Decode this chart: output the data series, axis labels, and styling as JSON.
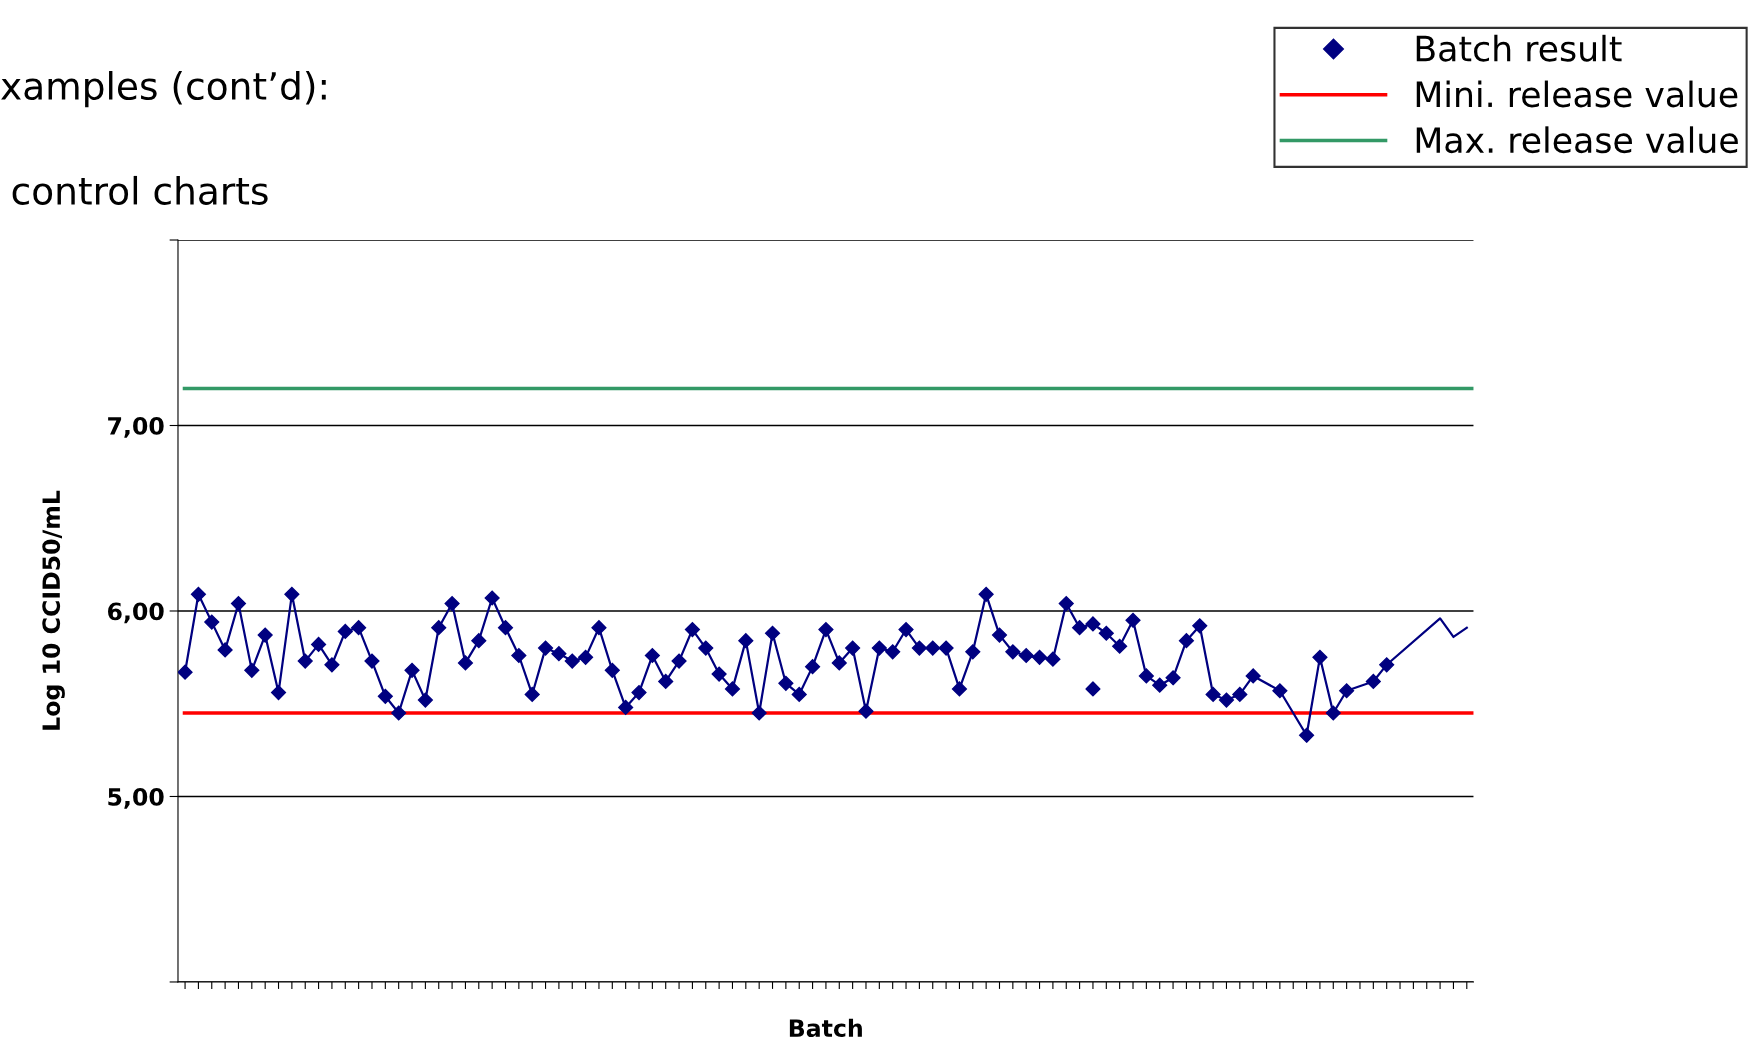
{
  "chart_data": {
    "type": "line",
    "xlabel": "Batch",
    "ylabel": "Log 10 CCID50/mL",
    "categories": [
      null,
      null,
      null,
      null,
      null,
      null,
      null,
      null,
      null,
      null,
      null,
      null,
      null,
      null,
      null,
      null,
      null,
      null,
      null,
      null,
      null,
      null,
      null,
      null,
      null,
      null,
      null,
      null,
      null,
      null,
      null,
      null,
      null,
      null,
      null,
      null,
      null,
      null,
      null,
      null,
      null,
      null,
      null,
      null,
      null,
      null,
      null,
      null,
      null,
      null,
      null,
      null,
      null,
      null,
      null,
      null,
      null,
      null,
      null,
      null,
      null,
      null,
      null,
      null,
      null,
      null,
      null,
      null,
      null,
      null,
      null,
      null,
      null,
      null,
      null,
      null,
      null,
      null,
      null,
      null,
      null,
      null,
      null,
      null,
      null,
      null,
      null,
      null,
      null,
      null,
      null,
      null,
      null,
      null,
      null,
      null,
      null
    ],
    "series": [
      {
        "name": "Batch result",
        "marker": "diamond",
        "color": "#000080",
        "values": [
          5.67,
          6.09,
          5.94,
          5.79,
          6.04,
          5.68,
          5.87,
          5.56,
          6.09,
          5.73,
          5.82,
          5.71,
          5.89,
          5.91,
          5.73,
          5.54,
          5.45,
          5.68,
          5.52,
          5.91,
          6.04,
          5.72,
          5.84,
          6.07,
          5.91,
          5.76,
          5.55,
          5.8,
          5.77,
          5.73,
          5.75,
          5.91,
          5.68,
          5.48,
          5.56,
          5.76,
          5.62,
          5.73,
          5.9,
          5.8,
          5.66,
          5.58,
          5.84,
          5.45,
          5.88,
          5.61,
          5.55,
          5.7,
          5.9,
          5.72,
          5.8,
          5.46,
          5.8,
          5.78,
          5.9,
          5.8,
          5.8,
          5.8,
          5.58,
          5.78,
          6.09,
          5.87,
          5.78,
          5.76,
          5.75,
          5.74,
          6.04,
          5.91,
          5.93,
          5.88,
          5.81,
          5.95,
          5.65,
          5.6,
          5.64,
          5.84,
          5.92,
          5.55,
          5.52,
          5.55,
          5.65,
          null,
          5.57,
          null,
          5.33,
          5.75,
          5.45,
          5.57,
          null,
          5.62,
          5.71,
          null,
          null,
          null,
          null,
          null,
          null
        ]
      },
      {
        "type": "scatter",
        "marker": "diamond",
        "color": "#000080",
        "values": [
          null,
          null,
          null,
          null,
          null,
          null,
          null,
          null,
          null,
          null,
          null,
          null,
          null,
          null,
          null,
          null,
          null,
          null,
          null,
          null,
          null,
          null,
          null,
          null,
          null,
          null,
          null,
          null,
          null,
          null,
          null,
          null,
          null,
          null,
          null,
          null,
          null,
          null,
          null,
          null,
          null,
          null,
          null,
          null,
          null,
          null,
          null,
          null,
          null,
          null,
          null,
          null,
          null,
          null,
          null,
          null,
          null,
          null,
          null,
          null,
          null,
          null,
          null,
          null,
          null,
          null,
          null,
          null,
          5.58,
          null,
          null,
          null,
          null,
          null,
          null,
          null,
          null,
          null,
          null,
          null,
          null,
          null,
          null,
          null,
          null,
          null,
          null,
          null,
          null,
          null,
          null,
          null,
          null,
          null,
          null,
          null,
          null
        ]
      },
      {
        "marker": "none",
        "color": "#000080",
        "values": [
          null,
          null,
          null,
          null,
          null,
          null,
          null,
          null,
          null,
          null,
          null,
          null,
          null,
          null,
          null,
          null,
          null,
          null,
          null,
          null,
          null,
          null,
          null,
          null,
          null,
          null,
          null,
          null,
          null,
          null,
          null,
          null,
          null,
          null,
          null,
          null,
          null,
          null,
          null,
          null,
          null,
          null,
          null,
          null,
          null,
          null,
          null,
          null,
          null,
          null,
          null,
          null,
          null,
          null,
          null,
          null,
          null,
          null,
          null,
          null,
          null,
          null,
          null,
          null,
          null,
          null,
          null,
          null,
          null,
          null,
          null,
          null,
          null,
          null,
          null,
          null,
          null,
          null,
          null,
          null,
          null,
          null,
          null,
          null,
          null,
          null,
          null,
          null,
          null,
          null,
          5.71,
          null,
          null,
          null,
          5.96,
          5.86,
          5.91
        ]
      }
    ],
    "ylim": [
      4,
      8
    ],
    "yticks": [
      {
        "value": 4,
        "label": null
      },
      {
        "value": 5,
        "label": "5,00"
      },
      {
        "value": 6,
        "label": "6,00"
      },
      {
        "value": 7,
        "label": "7,00"
      },
      {
        "value": 8,
        "label": null
      }
    ],
    "ref_lines": [
      {
        "axis": "y",
        "value": 5.45,
        "label": "Mini. release value",
        "color": "#ff0000",
        "line_style": "solid"
      },
      {
        "axis": "y",
        "value": 7.2,
        "label": "Max. release value",
        "color": "#339966",
        "line_style": "solid"
      }
    ],
    "grid": "y",
    "legend": "top right",
    "annotations": [
      "xamples (cont’d):",
      "control charts"
    ]
  }
}
